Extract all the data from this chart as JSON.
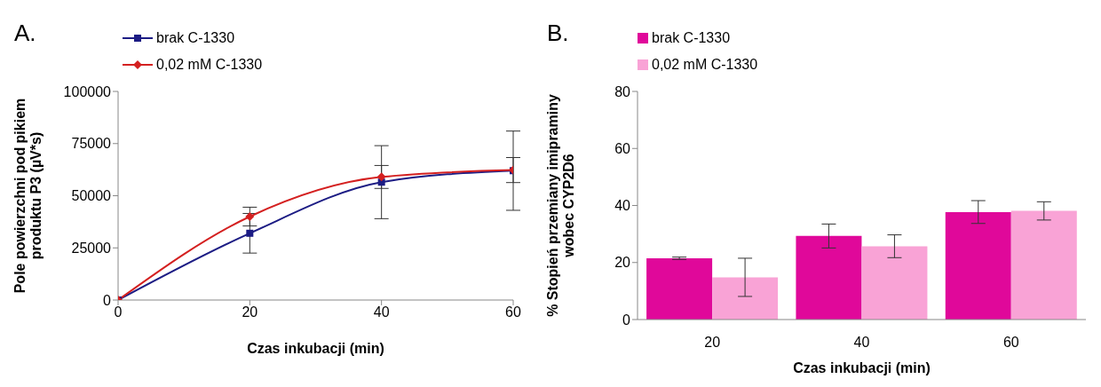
{
  "chart_data": [
    {
      "type": "line",
      "title": "A.",
      "xlabel": "Czas inkubacji (min)",
      "ylabel": "Pole powierzchni pod pikiem produktu P3 (µV*s)",
      "x": [
        0,
        20,
        40,
        60
      ],
      "xlim": [
        0,
        60
      ],
      "xticks": [
        0,
        20,
        40,
        60
      ],
      "ylim": [
        0,
        100000
      ],
      "yticks": [
        0,
        25000,
        50000,
        75000,
        100000
      ],
      "grid": false,
      "legend": "top left",
      "line_style": "solid",
      "series": [
        {
          "name": "brak C-1330",
          "color": "#1c1c84",
          "marker": "square",
          "values": [
            0,
            32000,
            56500,
            62000
          ],
          "errors": [
            null,
            9500,
            17500,
            19000
          ]
        },
        {
          "name": "0,02 mM C-1330",
          "color": "#d42020",
          "marker": "diamond",
          "values": [
            0,
            40000,
            59000,
            62300
          ],
          "errors": [
            null,
            4500,
            5500,
            6000
          ]
        }
      ]
    },
    {
      "type": "bar",
      "title": "B.",
      "xlabel": "Czas inkubacji (min)",
      "ylabel": "% Stopień przemiany imipraminy wobec CYP2D6",
      "categories": [
        "20",
        "40",
        "60"
      ],
      "ylim": [
        0,
        80
      ],
      "yticks": [
        0,
        20,
        40,
        60,
        80
      ],
      "grid": false,
      "legend": "top left",
      "series": [
        {
          "name": "brak C-1330",
          "color": "#e0089a",
          "values": [
            21.5,
            29.3,
            37.7
          ],
          "errors": [
            0.4,
            4.2,
            4
          ]
        },
        {
          "name": "0,02 mM C-1330",
          "color": "#f9a3d6",
          "values": [
            14.8,
            25.7,
            38.1
          ],
          "errors": [
            6.7,
            4,
            3.2
          ]
        }
      ]
    }
  ]
}
